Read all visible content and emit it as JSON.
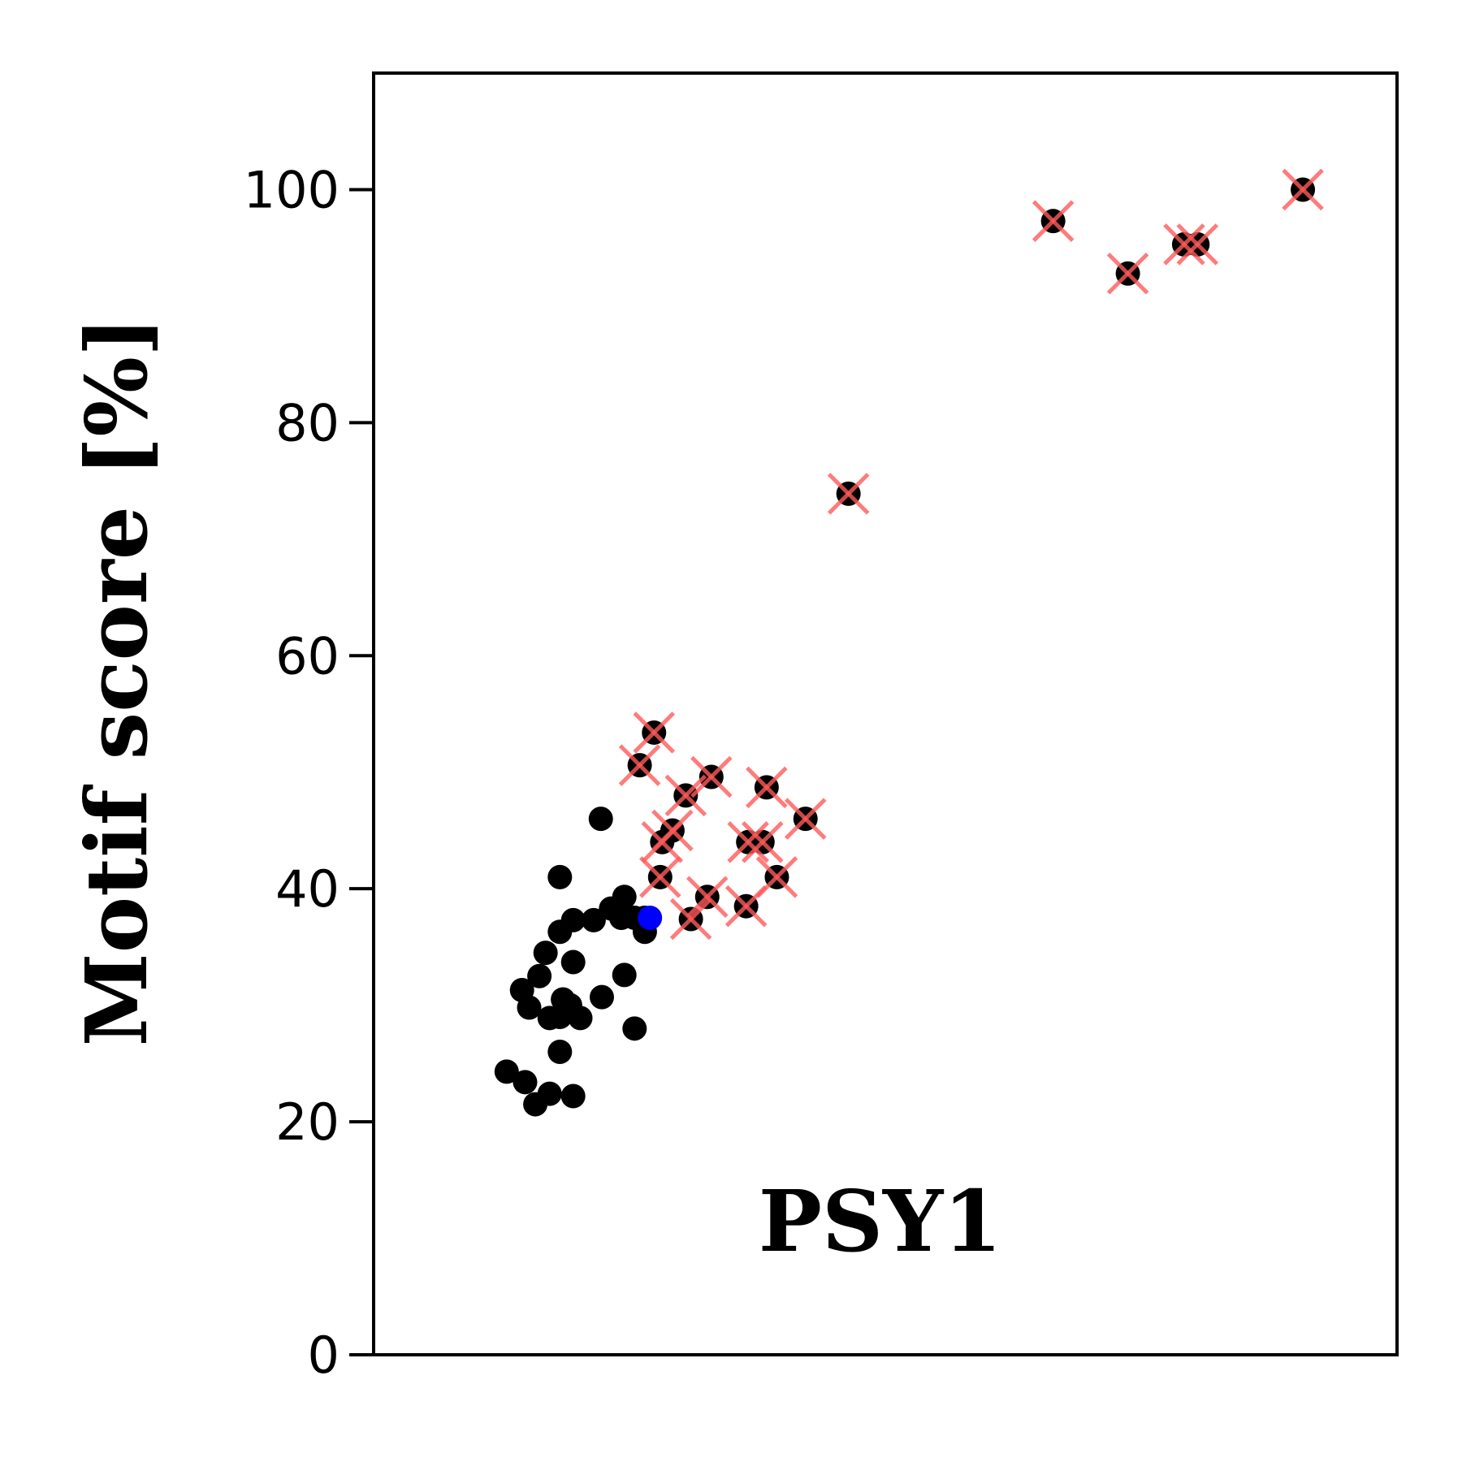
{
  "chart_data": {
    "type": "scatter",
    "ylabel": "Motif score [%]",
    "annotation": "PSY1",
    "xlim": [
      0,
      100
    ],
    "ylim": [
      0,
      110
    ],
    "yticks": [
      0,
      20,
      40,
      60,
      80,
      100
    ],
    "x_ticks_shown": false,
    "grid": false,
    "colors": {
      "points": "#000000",
      "highlight": "#0000ff",
      "cross": "#ff5a5a"
    },
    "series": [
      {
        "points": [
          [
            13,
            24.3
          ],
          [
            14.8,
            23.4
          ],
          [
            15.8,
            21.5
          ],
          [
            17.2,
            22.4
          ],
          [
            19.5,
            22.2
          ],
          [
            18.2,
            26
          ],
          [
            14.5,
            31.3
          ],
          [
            15.2,
            29.8
          ],
          [
            16.2,
            32.5
          ],
          [
            16.8,
            34.5
          ],
          [
            17.2,
            28.9
          ],
          [
            18.2,
            29
          ],
          [
            18.5,
            30.5
          ],
          [
            19.2,
            30
          ],
          [
            20.2,
            28.9
          ],
          [
            19.5,
            33.7
          ],
          [
            22.3,
            30.7
          ],
          [
            24.5,
            32.6
          ],
          [
            25.5,
            28
          ],
          [
            18.2,
            41
          ],
          [
            18.2,
            36.3
          ],
          [
            19.5,
            37.3
          ],
          [
            21.5,
            37.3
          ],
          [
            23.2,
            38.3
          ],
          [
            24.2,
            37.5
          ],
          [
            24.5,
            39.3
          ],
          [
            25.5,
            37.5
          ],
          [
            26.5,
            37.5
          ],
          [
            26.5,
            36.3
          ],
          [
            22.2,
            46
          ],
          [
            26,
            50.6
          ],
          [
            27.4,
            53.4
          ],
          [
            28,
            41
          ],
          [
            28.2,
            44
          ],
          [
            29.2,
            45
          ],
          [
            30.5,
            48
          ],
          [
            31,
            37.4
          ],
          [
            32.6,
            39.3
          ],
          [
            33,
            49.6
          ],
          [
            36.4,
            38.5
          ],
          [
            36.6,
            44
          ],
          [
            38,
            44
          ],
          [
            38.4,
            48.7
          ],
          [
            39.4,
            41
          ],
          [
            42.2,
            46
          ],
          [
            46.4,
            73.9
          ],
          [
            66.4,
            97.3
          ],
          [
            73.7,
            92.8
          ],
          [
            79.2,
            95.3
          ],
          [
            80.5,
            95.3
          ],
          [
            90.8,
            100
          ]
        ],
        "crossed": [
          [
            26,
            50.6
          ],
          [
            27.4,
            53.4
          ],
          [
            28,
            41
          ],
          [
            28.2,
            44
          ],
          [
            29.2,
            45
          ],
          [
            30.5,
            48
          ],
          [
            31,
            37.4
          ],
          [
            32.6,
            39.3
          ],
          [
            33,
            49.6
          ],
          [
            36.4,
            38.5
          ],
          [
            36.6,
            44
          ],
          [
            38,
            44
          ],
          [
            38.4,
            48.7
          ],
          [
            39.4,
            41
          ],
          [
            42.2,
            46
          ],
          [
            46.4,
            73.9
          ],
          [
            66.4,
            97.3
          ],
          [
            73.7,
            92.8
          ],
          [
            79.2,
            95.3
          ],
          [
            80.5,
            95.3
          ],
          [
            90.8,
            100
          ]
        ]
      },
      {
        "points": [
          [
            27,
            37.5
          ]
        ],
        "highlight": true
      }
    ]
  }
}
